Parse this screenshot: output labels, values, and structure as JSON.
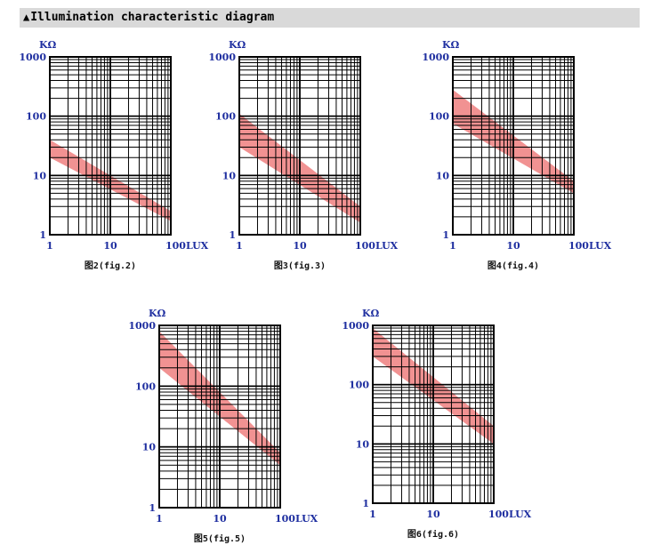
{
  "header": {
    "marker": "▲",
    "title": "Illumination characteristic diagram"
  },
  "chart_data": [
    {
      "type": "area",
      "caption": "图2(fig.2)",
      "yunit": "KΩ",
      "xlog": true,
      "ylog": true,
      "xlim": [
        1,
        100
      ],
      "ylim": [
        1,
        1000
      ],
      "x_ticks": [
        "1",
        "10",
        "100LUX"
      ],
      "y_ticks": [
        "1",
        "10",
        "100",
        "1000"
      ],
      "band": {
        "x": [
          1,
          100
        ],
        "upper": [
          40,
          2.5
        ],
        "lower": [
          20,
          1.7
        ]
      }
    },
    {
      "type": "area",
      "caption": "图3(fig.3)",
      "yunit": "KΩ",
      "xlog": true,
      "ylog": true,
      "xlim": [
        1,
        100
      ],
      "ylim": [
        1,
        1000
      ],
      "x_ticks": [
        "1",
        "10",
        "100LUX"
      ],
      "y_ticks": [
        "1",
        "10",
        "100",
        "1000"
      ],
      "band": {
        "x": [
          1,
          100
        ],
        "upper": [
          110,
          3
        ],
        "lower": [
          30,
          1.6
        ]
      }
    },
    {
      "type": "area",
      "caption": "图4(fig.4)",
      "yunit": "KΩ",
      "xlog": true,
      "ylog": true,
      "xlim": [
        1,
        100
      ],
      "ylim": [
        1,
        1000
      ],
      "x_ticks": [
        "1",
        "10",
        "100LUX"
      ],
      "y_ticks": [
        "1",
        "10",
        "100",
        "1000"
      ],
      "band": {
        "x": [
          1,
          100
        ],
        "upper": [
          280,
          8
        ],
        "lower": [
          75,
          5
        ]
      }
    },
    {
      "type": "area",
      "caption": "图5(fig.5)",
      "yunit": "KΩ",
      "xlog": true,
      "ylog": true,
      "xlim": [
        1,
        100
      ],
      "ylim": [
        1,
        1000
      ],
      "x_ticks": [
        "1",
        "10",
        "100LUX"
      ],
      "y_ticks": [
        "1",
        "10",
        "100",
        "1000"
      ],
      "band": {
        "x": [
          1,
          100
        ],
        "upper": [
          800,
          8
        ],
        "lower": [
          200,
          5
        ]
      }
    },
    {
      "type": "area",
      "caption": "图6(fig.6)",
      "yunit": "KΩ",
      "xlog": true,
      "ylog": true,
      "xlim": [
        1,
        100
      ],
      "ylim": [
        1,
        1000
      ],
      "x_ticks": [
        "1",
        "10",
        "100LUX"
      ],
      "y_ticks": [
        "1",
        "10",
        "100",
        "1000"
      ],
      "band": {
        "x": [
          1,
          100
        ],
        "upper": [
          900,
          20
        ],
        "lower": [
          300,
          10
        ]
      }
    }
  ],
  "colors": {
    "band_fill": "#f08c8c",
    "grid": "#000000",
    "label": "#1f2fa0"
  }
}
